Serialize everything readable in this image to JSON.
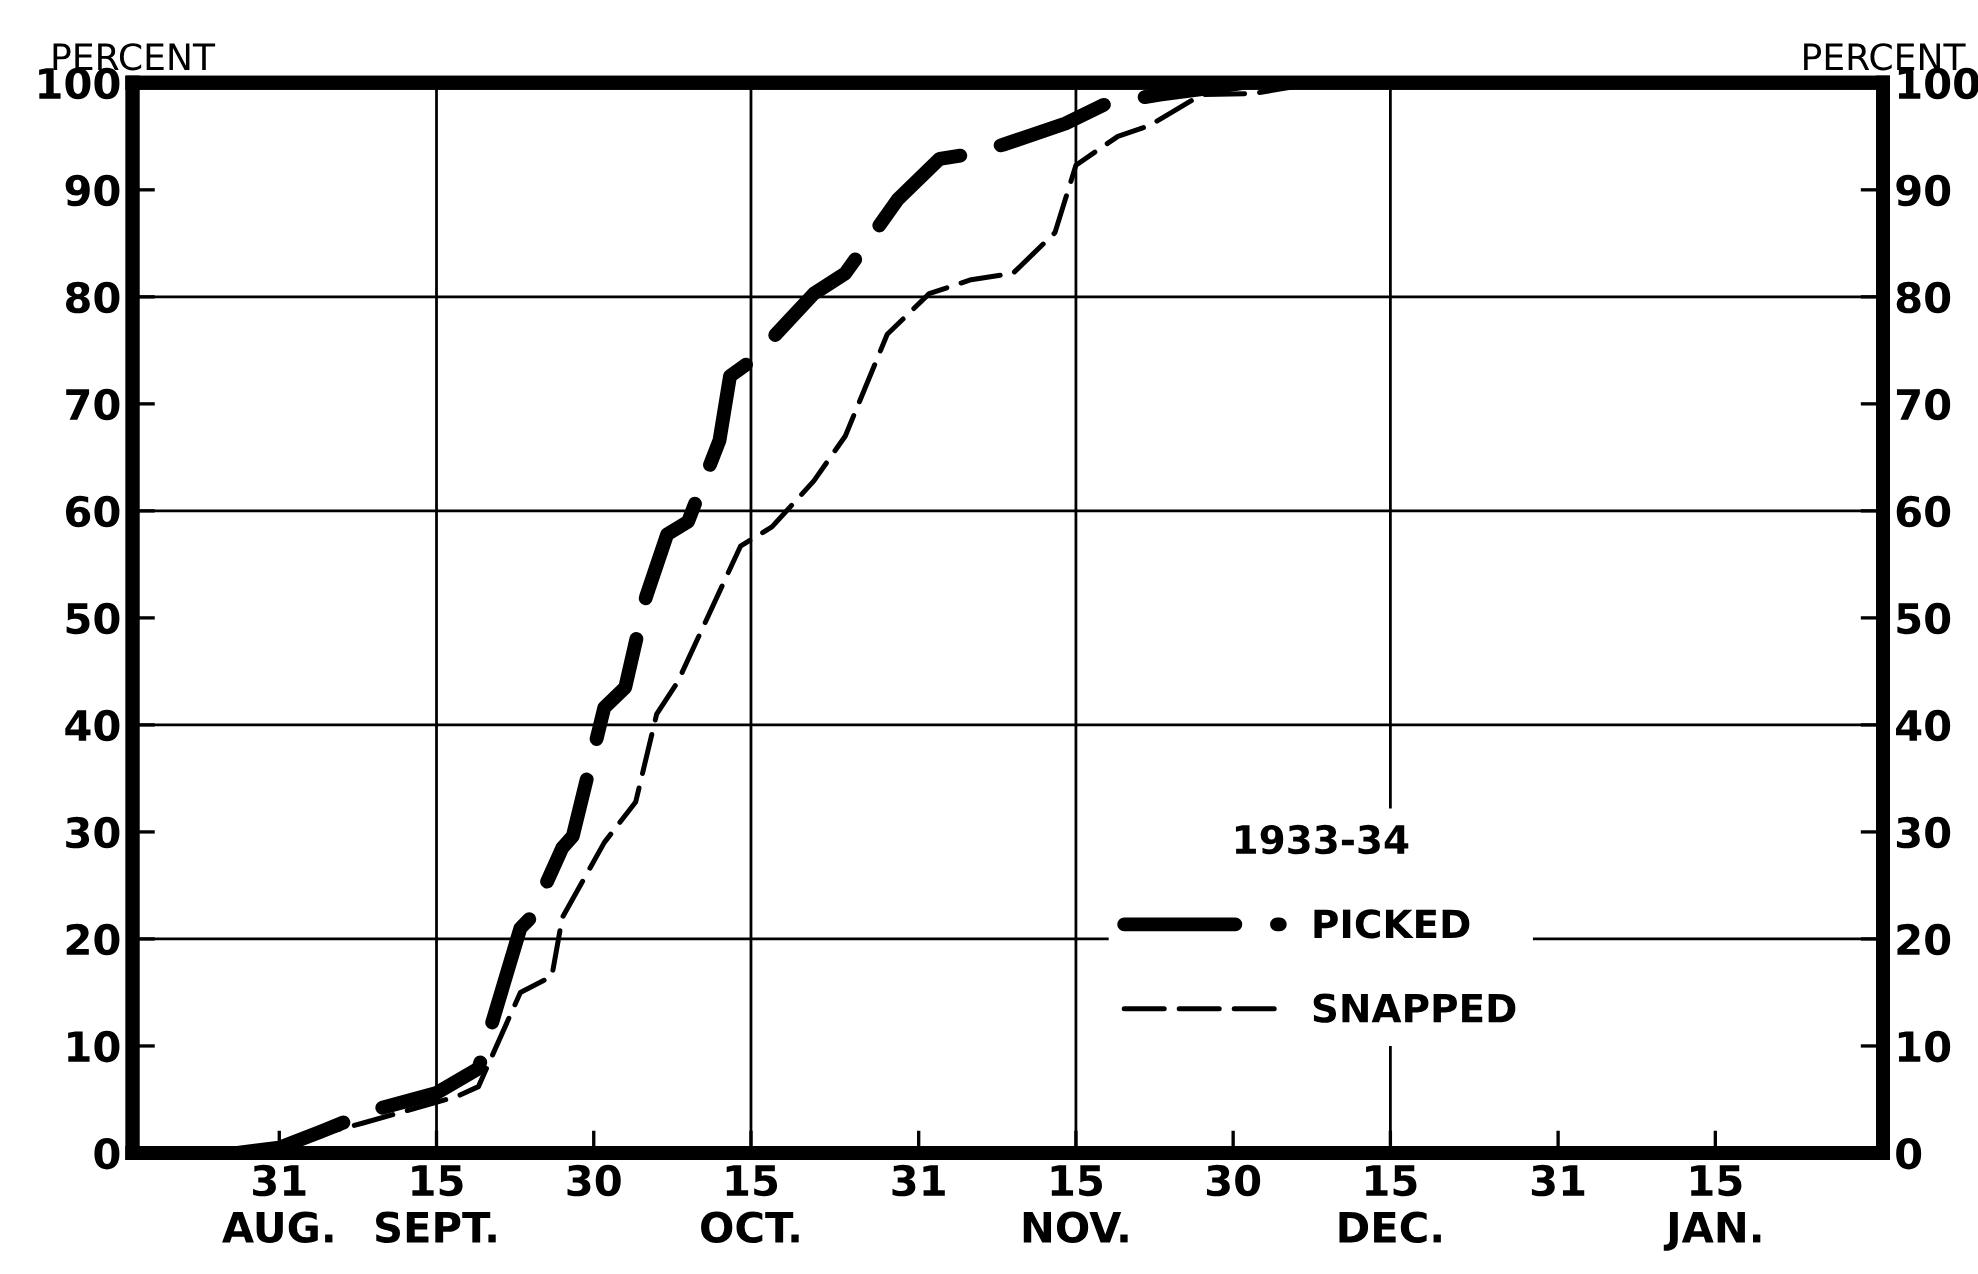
{
  "chart_data": {
    "type": "line",
    "ylabel": "PERCENT",
    "y2label": "PERCENT",
    "legend_title": "1933-34",
    "legend": "bottom right",
    "line_style": "dashed",
    "marker": "none",
    "xlim": [
      "1933-08-17",
      "1934-01-31"
    ],
    "xticks": [
      {
        "value": "1933-08-31",
        "label": "31\nAUG."
      },
      {
        "value": "1933-09-15",
        "label": "15\nSEPT."
      },
      {
        "value": "1933-09-30",
        "label": "30"
      },
      {
        "value": "1933-10-15",
        "label": "15\nOCT."
      },
      {
        "value": "1933-10-31",
        "label": "31"
      },
      {
        "value": "1933-11-15",
        "label": "15\nNOV."
      },
      {
        "value": "1933-11-30",
        "label": "30"
      },
      {
        "value": "1933-12-15",
        "label": "15\nDEC."
      },
      {
        "value": "1933-12-31",
        "label": "31"
      },
      {
        "value": "1934-01-15",
        "label": "15\nJAN."
      }
    ],
    "ylim": [
      0,
      100
    ],
    "yticks": [
      0,
      10,
      20,
      30,
      40,
      50,
      60,
      70,
      80,
      90,
      100
    ],
    "y2lim": [
      0,
      100
    ],
    "y2ticks": [
      0,
      10,
      20,
      30,
      40,
      50,
      60,
      70,
      80,
      90,
      100
    ],
    "ref_lines": [
      {
        "axis": "y",
        "value": 20,
        "color": "#000000"
      },
      {
        "axis": "y",
        "value": 40,
        "color": "#000000"
      },
      {
        "axis": "y",
        "value": 60,
        "color": "#000000"
      },
      {
        "axis": "y",
        "value": 80,
        "color": "#000000"
      },
      {
        "axis": "x",
        "value": "1933-09-15",
        "color": "#000000"
      },
      {
        "axis": "x",
        "value": "1933-10-15",
        "color": "#000000"
      },
      {
        "axis": "x",
        "value": "1933-11-15",
        "color": "#000000"
      },
      {
        "axis": "x",
        "value": "1933-12-15",
        "color": "#000000"
      }
    ],
    "series": [
      {
        "name": "PICKED",
        "color": "#000000",
        "x": [
          "1933-08-27",
          "1933-08-31",
          "1933-09-04",
          "1933-09-09",
          "1933-09-15",
          "1933-09-19",
          "1933-09-23",
          "1933-09-24",
          "1933-09-27",
          "1933-09-28",
          "1933-10-01",
          "1933-10-03",
          "1933-10-05",
          "1933-10-07",
          "1933-10-09",
          "1933-10-12",
          "1933-10-13",
          "1933-10-15",
          "1933-10-21",
          "1933-10-24",
          "1933-10-29",
          "1933-11-02",
          "1933-11-04",
          "1933-11-08",
          "1933-11-14",
          "1933-11-18",
          "1933-11-23",
          "1933-11-27",
          "1933-12-01"
        ],
        "values": [
          0,
          0.5,
          2,
          4,
          5.6,
          7.9,
          21,
          22,
          28.5,
          29.6,
          41.6,
          43.5,
          52,
          57.8,
          59,
          66.6,
          72.6,
          74,
          80.3,
          82.2,
          89.1,
          92.9,
          93.2,
          94.2,
          96.2,
          98.1,
          98.9,
          99.4,
          100
        ]
      },
      {
        "name": "SNAPPED",
        "color": "#000000",
        "x": [
          "1933-08-28",
          "1933-09-03",
          "1933-09-08",
          "1933-09-17",
          "1933-09-19",
          "1933-09-23",
          "1933-09-26",
          "1933-09-27",
          "1933-10-01",
          "1933-10-04",
          "1933-10-06",
          "1933-10-08",
          "1933-10-14",
          "1933-10-17",
          "1933-10-21",
          "1933-10-24",
          "1933-10-28",
          "1933-11-01",
          "1933-11-05",
          "1933-11-09",
          "1933-11-13",
          "1933-11-15",
          "1933-11-19",
          "1933-11-22",
          "1933-11-27",
          "1933-12-02",
          "1933-12-08"
        ],
        "values": [
          0,
          1.5,
          2.8,
          5.3,
          6.2,
          15,
          16.5,
          22,
          29,
          32.8,
          41,
          44,
          56.7,
          58.5,
          62.8,
          67,
          76.5,
          80.3,
          81.6,
          82.2,
          86,
          92.3,
          95,
          96,
          98.9,
          99,
          100
        ]
      }
    ]
  }
}
